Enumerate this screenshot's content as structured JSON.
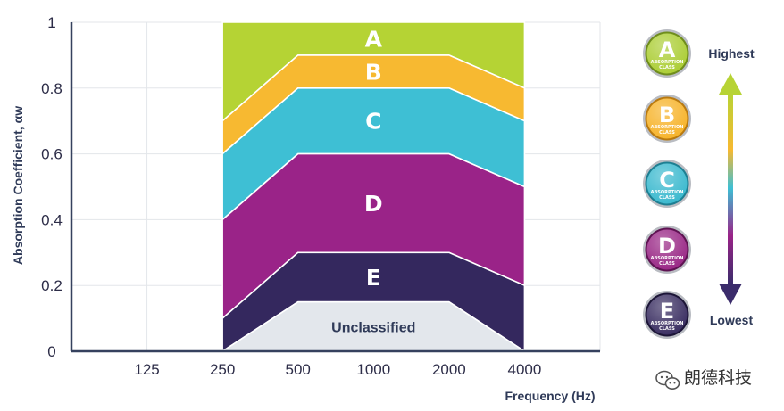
{
  "chart_data": {
    "type": "area",
    "xlabel": "Frequency (Hz)",
    "ylabel": "Absorption Coefficient, αw",
    "ylim": [
      0,
      1
    ],
    "yticks": [
      "0",
      "0.2",
      "0.4",
      "0.6",
      "0.8",
      "1"
    ],
    "xticks": [
      "125",
      "250",
      "500",
      "1000",
      "2000",
      "4000"
    ],
    "grid": true,
    "band_frequencies": [
      "250",
      "500",
      "1000",
      "2000",
      "4000"
    ],
    "classes": [
      {
        "label": "A",
        "color": "#b5d334",
        "lower": [
          0.7,
          0.9,
          0.9,
          0.9,
          0.8
        ],
        "upper": [
          1,
          1,
          1,
          1,
          1
        ]
      },
      {
        "label": "B",
        "color": "#f7b931",
        "lower": [
          0.6,
          0.8,
          0.8,
          0.8,
          0.7
        ],
        "upper": [
          0.7,
          0.9,
          0.9,
          0.9,
          0.8
        ]
      },
      {
        "label": "C",
        "color": "#3ebfd4",
        "lower": [
          0.4,
          0.6,
          0.6,
          0.6,
          0.5
        ],
        "upper": [
          0.6,
          0.8,
          0.8,
          0.8,
          0.7
        ]
      },
      {
        "label": "D",
        "color": "#9a2388",
        "lower": [
          0.1,
          0.3,
          0.3,
          0.3,
          0.2
        ],
        "upper": [
          0.4,
          0.6,
          0.6,
          0.6,
          0.5
        ]
      },
      {
        "label": "E",
        "color": "#34285e",
        "lower": [
          0.0,
          0.15,
          0.15,
          0.15,
          0.0
        ],
        "upper": [
          0.1,
          0.3,
          0.3,
          0.3,
          0.2
        ]
      },
      {
        "label": "Unclassified",
        "color": "#e3e7ec",
        "lower": [
          0,
          0,
          0,
          0,
          0
        ],
        "upper": [
          0.0,
          0.15,
          0.15,
          0.15,
          0.0
        ]
      }
    ]
  },
  "legend": {
    "badges": [
      {
        "letter": "A",
        "sub1": "ABSORPTION",
        "sub2": "CLASS",
        "color": "#a9cc2f",
        "dark": "#6f8d1c"
      },
      {
        "letter": "B",
        "sub1": "ABSORPTION",
        "sub2": "CLASS",
        "color": "#f6b124",
        "dark": "#b97a10"
      },
      {
        "letter": "C",
        "sub1": "ABSORPTION",
        "sub2": "CLASS",
        "color": "#35b7cd",
        "dark": "#1d7f92"
      },
      {
        "letter": "D",
        "sub1": "ABSORPTION",
        "sub2": "CLASS",
        "color": "#962182",
        "dark": "#5e1352"
      },
      {
        "letter": "E",
        "sub1": "ABSORPTION",
        "sub2": "CLASS",
        "color": "#33275c",
        "dark": "#1c1537"
      }
    ],
    "highest": "Highest",
    "lowest": "Lowest"
  },
  "watermark": {
    "icon": "wechat-icon",
    "text": "朗德科技"
  }
}
